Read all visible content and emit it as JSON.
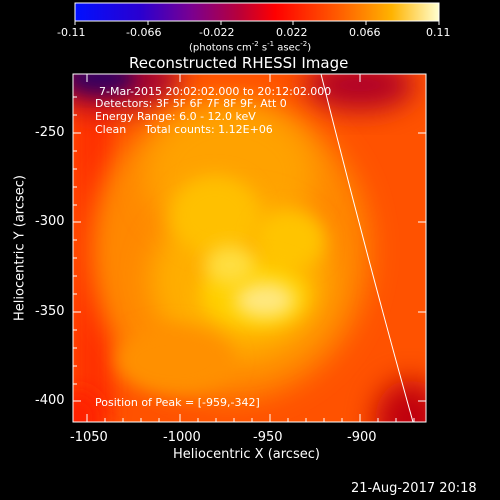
{
  "colorbar": {
    "ticks": [
      "-0.11",
      "-0.066",
      "-0.022",
      "0.022",
      "0.066",
      "0.11"
    ],
    "unit_main": "(photons cm",
    "unit_sup1": "-2",
    "unit_mid1": " s",
    "unit_sup2": "-1",
    "unit_mid2": " asec",
    "unit_sup3": "-2",
    "unit_end": ")"
  },
  "image": {
    "title": "Reconstructed RHESSI Image",
    "info_time": "7-Mar-2015 20:02:02.000 to 20:12:02.000",
    "info_detectors": "Detectors: 3F 5F 6F 7F 8F 9F, Att 0",
    "info_energy": "Energy Range: 6.0 - 12.0 keV",
    "info_clean": "Clean",
    "info_counts": "Total counts: 1.12E+06",
    "peak_label": "Position of Peak = [-959,-342]",
    "x_label": "Heliocentric X (arcsec)",
    "y_label": "Heliocentric Y (arcsec)",
    "x_ticks": [
      "-1050",
      "-1000",
      "-950",
      "-900"
    ],
    "y_ticks": [
      "-250",
      "-300",
      "-350",
      "-400"
    ]
  },
  "footer": {
    "date": "21-Aug-2017 20:18"
  }
}
